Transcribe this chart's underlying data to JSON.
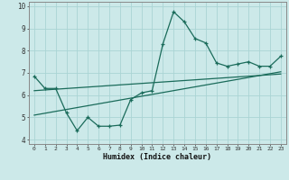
{
  "xlabel": "Humidex (Indice chaleur)",
  "background_color": "#cce9e9",
  "grid_color": "#aad4d4",
  "line_color": "#1a6b5a",
  "x_data": [
    0,
    1,
    2,
    3,
    4,
    5,
    6,
    7,
    8,
    9,
    10,
    11,
    12,
    13,
    14,
    15,
    16,
    17,
    18,
    19,
    20,
    21,
    22,
    23
  ],
  "y_main": [
    6.85,
    6.3,
    6.3,
    5.2,
    4.4,
    5.0,
    4.6,
    4.6,
    4.65,
    5.8,
    6.1,
    6.2,
    8.3,
    9.75,
    9.3,
    8.55,
    8.35,
    7.45,
    7.3,
    7.4,
    7.5,
    7.3,
    7.3,
    7.75
  ],
  "y_reg1_start": 5.1,
  "y_reg1_end": 7.05,
  "y_reg2_start": 6.2,
  "y_reg2_end": 6.95,
  "ylim": [
    3.8,
    10.2
  ],
  "xlim": [
    -0.5,
    23.5
  ],
  "yticks": [
    4,
    5,
    6,
    7,
    8,
    9,
    10
  ]
}
